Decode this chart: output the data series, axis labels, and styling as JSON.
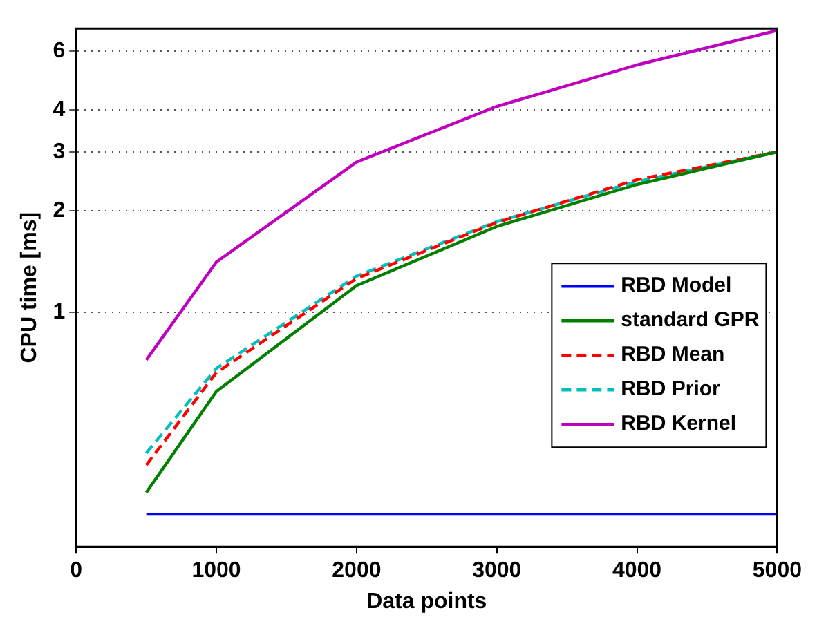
{
  "chart_data": {
    "type": "line",
    "xlabel": "Data points",
    "ylabel": "CPU time [ms]",
    "x": [
      500,
      1000,
      2000,
      3000,
      4000,
      5000
    ],
    "xlim": [
      0,
      5000
    ],
    "xticks": [
      0,
      1000,
      2000,
      3000,
      4000,
      5000
    ],
    "ylim": [
      0.2,
      7
    ],
    "yticks": [
      1,
      2,
      3,
      4,
      6
    ],
    "log": "y",
    "grid": "y",
    "legend": "bottom right",
    "marker": "none",
    "series": [
      {
        "name": "RBD Model",
        "color": "#0000ff",
        "line_style": "solid",
        "values": [
          0.25,
          0.25,
          0.25,
          0.25,
          0.25,
          0.25
        ]
      },
      {
        "name": "standard GPR",
        "color": "#008000",
        "line_style": "solid",
        "values": [
          0.29,
          0.58,
          1.2,
          1.8,
          2.4,
          3.0
        ]
      },
      {
        "name": "RBD Mean",
        "color": "#ff0000",
        "line_style": "dashed",
        "values": [
          0.35,
          0.66,
          1.26,
          1.85,
          2.48,
          3.0
        ]
      },
      {
        "name": "RBD Prior",
        "color": "#00bfbf",
        "line_style": "dashed",
        "values": [
          0.38,
          0.68,
          1.28,
          1.86,
          2.45,
          3.0
        ]
      },
      {
        "name": "RBD Kernel",
        "color": "#bf00bf",
        "line_style": "solid",
        "values": [
          0.72,
          1.41,
          2.8,
          4.1,
          5.45,
          6.9
        ]
      }
    ]
  }
}
